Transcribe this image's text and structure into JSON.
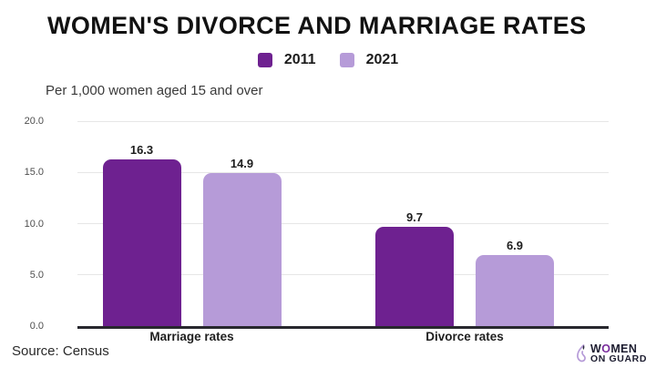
{
  "header": {
    "title": "WOMEN'S DIVORCE AND MARRIAGE RATES",
    "subtitle": "Per 1,000 women aged 15 and over"
  },
  "chart_data": {
    "type": "bar",
    "title": "WOMEN'S DIVORCE AND MARRIAGE RATES",
    "subtitle": "Per 1,000 women aged 15 and over",
    "categories": [
      "Marriage rates",
      "Divorce rates"
    ],
    "series": [
      {
        "name": "2011",
        "color": "#6e2190",
        "values": [
          16.3,
          9.7
        ]
      },
      {
        "name": "2021",
        "color": "#b69bd8",
        "values": [
          14.9,
          6.9
        ]
      }
    ],
    "ylim": [
      0,
      20
    ],
    "yticks": [
      0.0,
      5.0,
      10.0,
      15.0,
      20.0
    ],
    "ytick_decimals": 1,
    "grid": true,
    "legend_position": "top-center",
    "xlabel": "",
    "ylabel": ""
  },
  "footer": {
    "source": "Source: Census",
    "logo": {
      "line1_pre": "W",
      "line1_o": "O",
      "line1_post": "MEN",
      "line2": "ON GUARD"
    }
  },
  "colors": {
    "series_2011": "#6e2190",
    "series_2021": "#b69bd8",
    "gridline": "#e6e6e6",
    "axis_line": "#28282e",
    "title_text": "#121212",
    "logo_text": "#1d1d30"
  }
}
